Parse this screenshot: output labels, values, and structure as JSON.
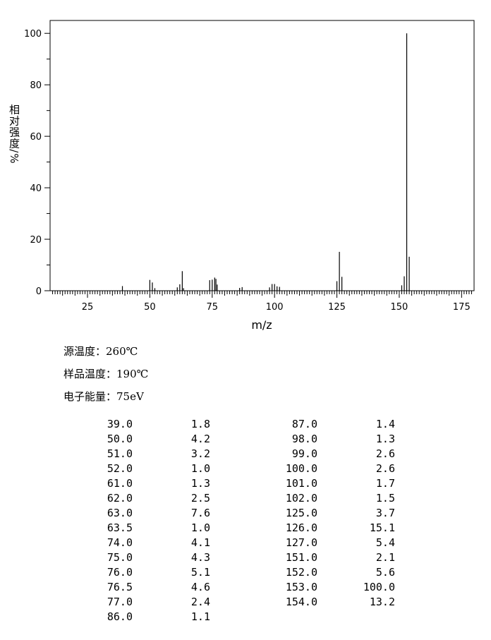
{
  "chart_data": {
    "type": "bar",
    "xlabel": "m/z",
    "ylabel": "相对强度/%",
    "xlim": [
      10,
      180
    ],
    "ylim": [
      0,
      105
    ],
    "x_ticks": [
      25,
      50,
      75,
      100,
      125,
      150,
      175
    ],
    "y_ticks": [
      0,
      20,
      40,
      60,
      80,
      100
    ],
    "peaks": [
      {
        "mz": 39.0,
        "intensity": 1.8
      },
      {
        "mz": 50.0,
        "intensity": 4.2
      },
      {
        "mz": 51.0,
        "intensity": 3.2
      },
      {
        "mz": 52.0,
        "intensity": 1.0
      },
      {
        "mz": 61.0,
        "intensity": 1.3
      },
      {
        "mz": 62.0,
        "intensity": 2.5
      },
      {
        "mz": 63.0,
        "intensity": 7.6
      },
      {
        "mz": 63.5,
        "intensity": 1.0
      },
      {
        "mz": 74.0,
        "intensity": 4.1
      },
      {
        "mz": 75.0,
        "intensity": 4.3
      },
      {
        "mz": 76.0,
        "intensity": 5.1
      },
      {
        "mz": 76.5,
        "intensity": 4.6
      },
      {
        "mz": 77.0,
        "intensity": 2.4
      },
      {
        "mz": 86.0,
        "intensity": 1.1
      },
      {
        "mz": 87.0,
        "intensity": 1.4
      },
      {
        "mz": 98.0,
        "intensity": 1.3
      },
      {
        "mz": 99.0,
        "intensity": 2.6
      },
      {
        "mz": 100.0,
        "intensity": 2.6
      },
      {
        "mz": 101.0,
        "intensity": 1.7
      },
      {
        "mz": 102.0,
        "intensity": 1.5
      },
      {
        "mz": 125.0,
        "intensity": 3.7
      },
      {
        "mz": 126.0,
        "intensity": 15.1
      },
      {
        "mz": 127.0,
        "intensity": 5.4
      },
      {
        "mz": 151.0,
        "intensity": 2.1
      },
      {
        "mz": 152.0,
        "intensity": 5.6
      },
      {
        "mz": 153.0,
        "intensity": 100.0
      },
      {
        "mz": 154.0,
        "intensity": 13.2
      }
    ]
  },
  "conditions": {
    "source_temp": "源温度：260℃",
    "sample_temp": "样品温度：190℃",
    "electron_energy": "电子能量：75eV"
  },
  "table_rows": [
    [
      "39.0",
      "1.8",
      "87.0",
      "1.4"
    ],
    [
      "50.0",
      "4.2",
      "98.0",
      "1.3"
    ],
    [
      "51.0",
      "3.2",
      "99.0",
      "2.6"
    ],
    [
      "52.0",
      "1.0",
      "100.0",
      "2.6"
    ],
    [
      "61.0",
      "1.3",
      "101.0",
      "1.7"
    ],
    [
      "62.0",
      "2.5",
      "102.0",
      "1.5"
    ],
    [
      "63.0",
      "7.6",
      "125.0",
      "3.7"
    ],
    [
      "63.5",
      "1.0",
      "126.0",
      "15.1"
    ],
    [
      "74.0",
      "4.1",
      "127.0",
      "5.4"
    ],
    [
      "75.0",
      "4.3",
      "151.0",
      "2.1"
    ],
    [
      "76.0",
      "5.1",
      "152.0",
      "5.6"
    ],
    [
      "76.5",
      "4.6",
      "153.0",
      "100.0"
    ],
    [
      "77.0",
      "2.4",
      "154.0",
      "13.2"
    ],
    [
      "86.0",
      "1.1",
      "",
      ""
    ]
  ]
}
